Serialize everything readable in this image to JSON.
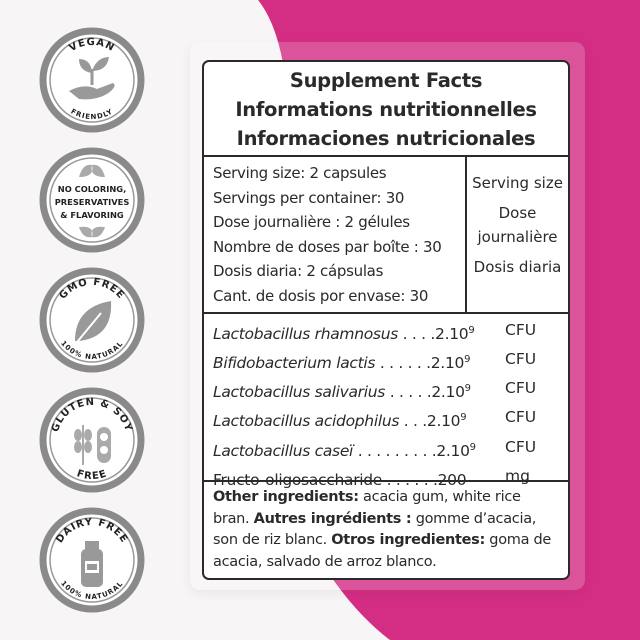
{
  "colors": {
    "accent": "#d42e84",
    "card_tint": "#dc519b",
    "badge_gray": "#8a8a8a",
    "text": "#2a2a2a"
  },
  "badges": [
    {
      "top": "VEGAN",
      "bottom": "FRIENDLY",
      "icon": "hand-plant-icon"
    },
    {
      "lines": [
        "NO COLORING,",
        "PRESERVATIVES",
        "& FLAVORING"
      ],
      "icon": "leaves-icon"
    },
    {
      "top": "GMO FREE",
      "bottom": "100% NATURAL",
      "icon": "leaf-icon"
    },
    {
      "top": "GLUTEN & SOY",
      "bottom": "FREE",
      "icon": "wheat-soy-icon"
    },
    {
      "top": "DAIRY FREE",
      "bottom": "100% NATURAL",
      "icon": "milk-bottle-icon"
    }
  ],
  "label": {
    "titles": [
      "Supplement Facts",
      "Informations nutritionnelles",
      "Informaciones nutricionales"
    ],
    "serving_lines": [
      "Serving size: 2 capsules",
      "Servings per container: 30",
      "Dose journalière : 2 gélules",
      "Nombre de doses par boîte : 30",
      "Dosis diaria: 2 cápsulas",
      "Cant. de dosis por envase: 30"
    ],
    "serving_headers": [
      "Serving size",
      "Dose\njournalière",
      "Dosis diaria"
    ],
    "ingredients": [
      {
        "name": "Lactobacillus rhamnosus",
        "dots": " . . . .",
        "amount": "2.10",
        "exp": "9",
        "unit": "CFU",
        "italic": true
      },
      {
        "name": "Bifidobacterium lactis",
        "dots": " . . . . . .",
        "amount": "2.10",
        "exp": "9",
        "unit": "CFU",
        "italic": true
      },
      {
        "name": "Lactobacillus salivarius",
        "dots": " . . . . .",
        "amount": "2.10",
        "exp": "9",
        "unit": "CFU",
        "italic": true
      },
      {
        "name": "Lactobacillus acidophilus",
        "dots": " . . .",
        "amount": "2.10",
        "exp": "9",
        "unit": "CFU",
        "italic": true
      },
      {
        "name": "Lactobacillus caseï",
        "dots": " . . . . . . . . .",
        "amount": "2.10",
        "exp": "9",
        "unit": "CFU",
        "italic": true
      },
      {
        "name": "Fructo-oligosaccharide",
        "dots": " . . . . . .",
        "amount": "200",
        "exp": "",
        "unit": "mg",
        "italic": false
      }
    ],
    "other": [
      {
        "b": "Other ingredients:",
        "t": " acacia gum, white rice bran. "
      },
      {
        "b": "Autres ingrédients :",
        "t": " gomme d’acacia, son de riz blanc. "
      },
      {
        "b": "Otros ingredientes:",
        "t": " goma de acacia, salvado de arroz blanco."
      }
    ]
  }
}
